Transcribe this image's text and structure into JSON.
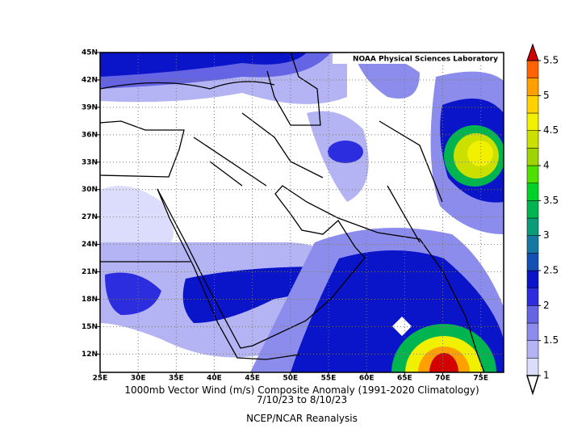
{
  "chart_data": {
    "type": "map",
    "title": "1000mb Vector Wind (m/s) Composite Anomaly (1991-2020 Climatology)",
    "subtitle": "7/10/23  to 8/10/23",
    "source": "NCEP/NCAR Reanalysis",
    "attribution": "NOAA Physical Sciences Laboratory",
    "xlim": [
      25,
      78
    ],
    "ylim": [
      10,
      45
    ],
    "grid": true,
    "xticks": [
      {
        "value": 25,
        "label": "25E"
      },
      {
        "value": 30,
        "label": "30E"
      },
      {
        "value": 35,
        "label": "35E"
      },
      {
        "value": 40,
        "label": "40E"
      },
      {
        "value": 45,
        "label": "45E"
      },
      {
        "value": 50,
        "label": "50E"
      },
      {
        "value": 55,
        "label": "55E"
      },
      {
        "value": 60,
        "label": "60E"
      },
      {
        "value": 65,
        "label": "65E"
      },
      {
        "value": 70,
        "label": "70E"
      },
      {
        "value": 75,
        "label": "75E"
      }
    ],
    "yticks": [
      {
        "value": 12,
        "label": "12N"
      },
      {
        "value": 15,
        "label": "15N"
      },
      {
        "value": 18,
        "label": "18N"
      },
      {
        "value": 21,
        "label": "21N"
      },
      {
        "value": 24,
        "label": "24N"
      },
      {
        "value": 27,
        "label": "27N"
      },
      {
        "value": 30,
        "label": "30N"
      },
      {
        "value": 33,
        "label": "33N"
      },
      {
        "value": 36,
        "label": "36N"
      },
      {
        "value": 39,
        "label": "39N"
      },
      {
        "value": 42,
        "label": "42N"
      },
      {
        "value": 45,
        "label": "45N"
      }
    ],
    "colorbar": {
      "ticks": [
        1,
        1.5,
        2,
        2.5,
        3,
        3.5,
        4,
        4.5,
        5,
        5.5
      ],
      "levels": [
        1,
        1.25,
        1.5,
        1.75,
        2,
        2.25,
        2.5,
        2.75,
        3,
        3.25,
        3.5,
        3.75,
        4,
        4.25,
        4.5,
        4.75,
        5,
        5.25,
        5.5
      ],
      "colors": [
        "#dcdcfc",
        "#b4b4f4",
        "#8c8cec",
        "#6464e4",
        "#2d2de0",
        "#0a14c8",
        "#1450b4",
        "#1478a0",
        "#0a9c78",
        "#00b450",
        "#00d228",
        "#50e000",
        "#a0d400",
        "#cce000",
        "#f0f000",
        "#ffd200",
        "#ffa000",
        "#ff6400"
      ],
      "under_color": "#ffffff",
      "over_color": "#d20000"
    }
  }
}
